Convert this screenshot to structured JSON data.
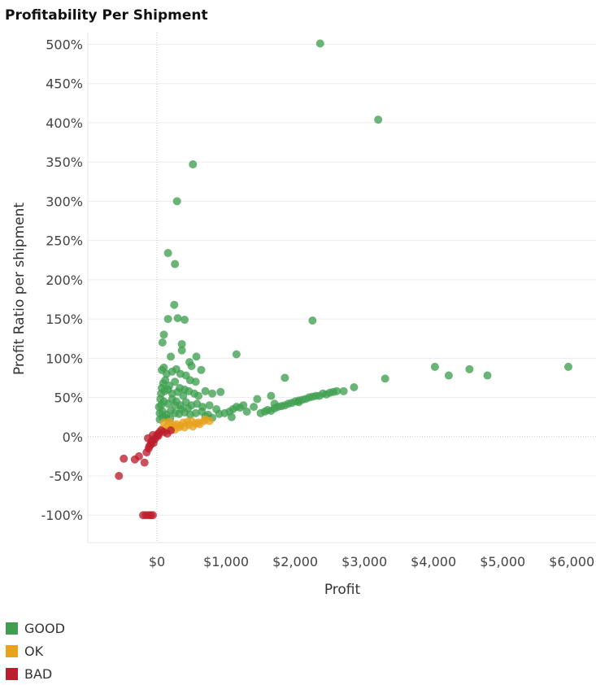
{
  "chart_data": {
    "type": "scatter",
    "title": "Profitability Per Shipment",
    "xlabel": "Profit",
    "ylabel": "Profit Ratio per shipment",
    "xlim": [
      -1000,
      6350
    ],
    "ylim": [
      -135,
      515
    ],
    "x_ticks": [
      {
        "value": 0,
        "label": "$0"
      },
      {
        "value": 1000,
        "label": "$1,000"
      },
      {
        "value": 2000,
        "label": "$2,000"
      },
      {
        "value": 3000,
        "label": "$3,000"
      },
      {
        "value": 4000,
        "label": "$4,000"
      },
      {
        "value": 5000,
        "label": "$5,000"
      },
      {
        "value": 6000,
        "label": "$6,000"
      }
    ],
    "y_ticks": [
      {
        "value": 500,
        "label": "500%"
      },
      {
        "value": 450,
        "label": "450%"
      },
      {
        "value": 400,
        "label": "400%"
      },
      {
        "value": 350,
        "label": "350%"
      },
      {
        "value": 300,
        "label": "300%"
      },
      {
        "value": 250,
        "label": "250%"
      },
      {
        "value": 200,
        "label": "200%"
      },
      {
        "value": 150,
        "label": "150%"
      },
      {
        "value": 100,
        "label": "100%"
      },
      {
        "value": 50,
        "label": "50%"
      },
      {
        "value": 0,
        "label": "0%"
      },
      {
        "value": -50,
        "label": "-50%"
      },
      {
        "value": -100,
        "label": "-100%"
      }
    ],
    "grid": true,
    "legend_position": "bottom-left",
    "colors": {
      "GOOD": "#3f9f4f",
      "OK": "#e8a21c",
      "BAD": "#bb1f2e"
    },
    "series": [
      {
        "name": "GOOD",
        "points": [
          [
            2360,
            501
          ],
          [
            3200,
            404
          ],
          [
            520,
            347
          ],
          [
            290,
            300
          ],
          [
            160,
            234
          ],
          [
            260,
            220
          ],
          [
            160,
            150
          ],
          [
            250,
            168
          ],
          [
            300,
            151
          ],
          [
            400,
            149
          ],
          [
            2250,
            148
          ],
          [
            1150,
            105
          ],
          [
            100,
            130
          ],
          [
            80,
            120
          ],
          [
            360,
            118
          ],
          [
            360,
            110
          ],
          [
            200,
            102
          ],
          [
            570,
            102
          ],
          [
            470,
            95
          ],
          [
            500,
            90
          ],
          [
            640,
            85
          ],
          [
            70,
            85
          ],
          [
            100,
            88
          ],
          [
            140,
            80
          ],
          [
            220,
            83
          ],
          [
            280,
            86
          ],
          [
            340,
            80
          ],
          [
            420,
            78
          ],
          [
            480,
            72
          ],
          [
            560,
            70
          ],
          [
            120,
            72
          ],
          [
            90,
            68
          ],
          [
            180,
            65
          ],
          [
            260,
            70
          ],
          [
            330,
            62
          ],
          [
            400,
            60
          ],
          [
            460,
            58
          ],
          [
            540,
            55
          ],
          [
            600,
            52
          ],
          [
            700,
            58
          ],
          [
            800,
            55
          ],
          [
            920,
            57
          ],
          [
            60,
            55
          ],
          [
            110,
            58
          ],
          [
            160,
            60
          ],
          [
            220,
            55
          ],
          [
            300,
            57
          ],
          [
            380,
            52
          ],
          [
            60,
            40
          ],
          [
            100,
            45
          ],
          [
            160,
            42
          ],
          [
            220,
            48
          ],
          [
            280,
            45
          ],
          [
            340,
            40
          ],
          [
            420,
            44
          ],
          [
            500,
            40
          ],
          [
            580,
            42
          ],
          [
            660,
            38
          ],
          [
            760,
            40
          ],
          [
            860,
            35
          ],
          [
            40,
            30
          ],
          [
            80,
            32
          ],
          [
            140,
            28
          ],
          [
            200,
            33
          ],
          [
            260,
            30
          ],
          [
            320,
            29
          ],
          [
            400,
            31
          ],
          [
            480,
            28
          ],
          [
            560,
            30
          ],
          [
            700,
            26
          ],
          [
            800,
            24
          ],
          [
            900,
            29
          ],
          [
            40,
            22
          ],
          [
            80,
            25
          ],
          [
            130,
            24
          ],
          [
            190,
            23
          ],
          [
            30,
            38
          ],
          [
            50,
            48
          ],
          [
            70,
            62
          ],
          [
            260,
            40
          ],
          [
            350,
            35
          ],
          [
            450,
            36
          ],
          [
            650,
            32
          ],
          [
            740,
            28
          ],
          [
            980,
            30
          ],
          [
            1050,
            32
          ],
          [
            1100,
            35
          ],
          [
            1150,
            38
          ],
          [
            1200,
            37
          ],
          [
            1080,
            25
          ],
          [
            1250,
            40
          ],
          [
            1450,
            48
          ],
          [
            1500,
            30
          ],
          [
            1560,
            32
          ],
          [
            1600,
            34
          ],
          [
            1650,
            33
          ],
          [
            1700,
            36
          ],
          [
            1750,
            38
          ],
          [
            1800,
            39
          ],
          [
            1850,
            40
          ],
          [
            1900,
            42
          ],
          [
            1950,
            43
          ],
          [
            2000,
            45
          ],
          [
            2050,
            46
          ],
          [
            2100,
            47
          ],
          [
            2150,
            48
          ],
          [
            2200,
            50
          ],
          [
            2300,
            52
          ],
          [
            2350,
            52
          ],
          [
            2400,
            55
          ],
          [
            2450,
            54
          ],
          [
            2500,
            56
          ],
          [
            2600,
            58
          ],
          [
            2700,
            58
          ],
          [
            2850,
            63
          ],
          [
            1850,
            75
          ],
          [
            1650,
            52
          ],
          [
            3300,
            74
          ],
          [
            4020,
            89
          ],
          [
            4220,
            78
          ],
          [
            4520,
            86
          ],
          [
            4780,
            78
          ],
          [
            5950,
            89
          ],
          [
            1300,
            32
          ],
          [
            1400,
            38
          ],
          [
            1700,
            42
          ],
          [
            2050,
            44
          ],
          [
            2250,
            51
          ],
          [
            2550,
            57
          ]
        ]
      },
      {
        "name": "OK",
        "points": [
          [
            100,
            18
          ],
          [
            160,
            15
          ],
          [
            220,
            12
          ],
          [
            280,
            16
          ],
          [
            340,
            14
          ],
          [
            400,
            12
          ],
          [
            460,
            15
          ],
          [
            520,
            13
          ],
          [
            600,
            18
          ],
          [
            680,
            20
          ],
          [
            760,
            20
          ],
          [
            80,
            10
          ],
          [
            140,
            8
          ],
          [
            200,
            11
          ],
          [
            260,
            9
          ],
          [
            320,
            12
          ],
          [
            380,
            18
          ],
          [
            440,
            19
          ],
          [
            500,
            20
          ],
          [
            560,
            17
          ],
          [
            620,
            16
          ],
          [
            700,
            22
          ],
          [
            250,
            14
          ],
          [
            180,
            19
          ]
        ]
      },
      {
        "name": "BAD",
        "points": [
          [
            -550,
            -50
          ],
          [
            -480,
            -28
          ],
          [
            -320,
            -29
          ],
          [
            -260,
            -25
          ],
          [
            -180,
            -33
          ],
          [
            -150,
            -20
          ],
          [
            -120,
            -15
          ],
          [
            -90,
            -10
          ],
          [
            -70,
            -5
          ],
          [
            -50,
            -8
          ],
          [
            -30,
            -3
          ],
          [
            -10,
            0
          ],
          [
            10,
            3
          ],
          [
            30,
            5
          ],
          [
            60,
            8
          ],
          [
            100,
            6
          ],
          [
            150,
            4
          ],
          [
            200,
            8
          ],
          [
            -110,
            -12
          ],
          [
            -80,
            -6
          ],
          [
            -200,
            -100
          ],
          [
            -160,
            -100
          ],
          [
            -120,
            -100
          ],
          [
            -90,
            -100
          ],
          [
            -60,
            -100
          ],
          [
            -130,
            -2
          ],
          [
            -60,
            2
          ],
          [
            20,
            1
          ]
        ]
      }
    ]
  }
}
